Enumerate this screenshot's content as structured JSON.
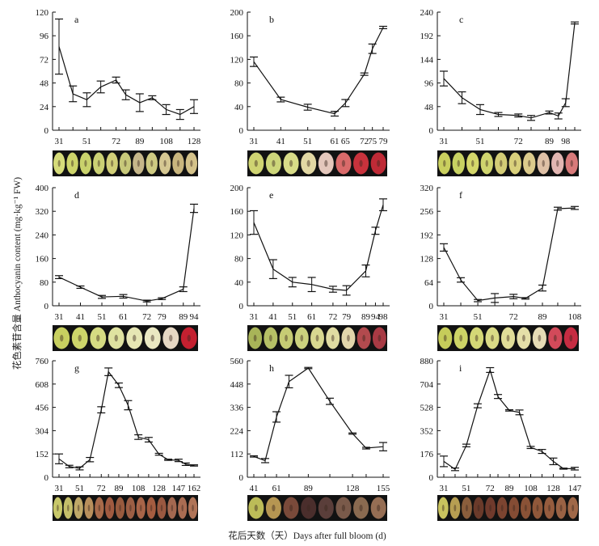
{
  "y_axis_label": "花色素苷含量 Anthocyanin content (mg·kg⁻¹ FW)",
  "x_axis_label": "花后天数（天）Days after full bloom (d)",
  "chart_data": [
    {
      "panel": "a",
      "type": "line",
      "yticks": [
        0,
        24,
        48,
        72,
        96,
        120
      ],
      "ylim": [
        0,
        120
      ],
      "xticks": [
        "31",
        "51",
        "72",
        "89",
        "108",
        "128"
      ],
      "points": [
        {
          "day": 31,
          "mean": 85,
          "err": 28
        },
        {
          "day": 41,
          "mean": 37,
          "err": 8
        },
        {
          "day": 51,
          "mean": 31,
          "err": 7
        },
        {
          "day": 61,
          "mean": 44,
          "err": 6
        },
        {
          "day": 72,
          "mean": 51,
          "err": 3
        },
        {
          "day": 79,
          "mean": 36,
          "err": 5
        },
        {
          "day": 89,
          "mean": 28,
          "err": 9
        },
        {
          "day": 98,
          "mean": 33,
          "err": 2
        },
        {
          "day": 108,
          "mean": 21,
          "err": 5
        },
        {
          "day": 118,
          "mean": 16,
          "err": 5
        },
        {
          "day": 128,
          "mean": 24,
          "err": 7
        }
      ],
      "fruit_colors": [
        "#d6dc7a",
        "#cdd46a",
        "#c9d26c",
        "#cbd174",
        "#d1cf78",
        "#c7c87a",
        "#c6b78a",
        "#ceca82",
        "#d5c792",
        "#c9b67e",
        "#d4c28a"
      ]
    },
    {
      "panel": "b",
      "type": "line",
      "yticks": [
        0,
        40,
        80,
        120,
        160,
        200
      ],
      "ylim": [
        0,
        200
      ],
      "xticks": [
        "31",
        "41",
        "51",
        "61",
        "65",
        "72",
        "75",
        "79"
      ],
      "points": [
        {
          "day": 31,
          "mean": 116,
          "err": 8
        },
        {
          "day": 41,
          "mean": 52,
          "err": 4
        },
        {
          "day": 51,
          "mean": 39,
          "err": 5
        },
        {
          "day": 61,
          "mean": 28,
          "err": 4
        },
        {
          "day": 65,
          "mean": 46,
          "err": 6
        },
        {
          "day": 72,
          "mean": 95,
          "err": 2
        },
        {
          "day": 75,
          "mean": 138,
          "err": 8
        },
        {
          "day": 79,
          "mean": 174,
          "err": 2
        }
      ],
      "fruit_colors": [
        "#cfd472",
        "#cdd67a",
        "#d8dc88",
        "#e2d8a4",
        "#e4c7bc",
        "#d96a6a",
        "#c8323c",
        "#bf2a36"
      ]
    },
    {
      "panel": "c",
      "type": "line",
      "yticks": [
        0,
        48,
        96,
        144,
        192,
        240
      ],
      "ylim": [
        0,
        240
      ],
      "xticks": [
        "31",
        "51",
        "72",
        "89",
        "98"
      ],
      "points": [
        {
          "day": 31,
          "mean": 105,
          "err": 15
        },
        {
          "day": 41,
          "mean": 66,
          "err": 12
        },
        {
          "day": 51,
          "mean": 42,
          "err": 10
        },
        {
          "day": 61,
          "mean": 32,
          "err": 4
        },
        {
          "day": 72,
          "mean": 30,
          "err": 3
        },
        {
          "day": 79,
          "mean": 25,
          "err": 5
        },
        {
          "day": 89,
          "mean": 36,
          "err": 3
        },
        {
          "day": 94,
          "mean": 29,
          "err": 6
        },
        {
          "day": 98,
          "mean": 56,
          "err": 8
        },
        {
          "day": 103,
          "mean": 218,
          "err": 2
        }
      ],
      "fruit_colors": [
        "#c9cf5e",
        "#c8d262",
        "#d4d76a",
        "#cfd46e",
        "#d3cc76",
        "#d9d07c",
        "#dccb8c",
        "#dec0a6",
        "#e2b6b2",
        "#d87a7a"
      ]
    },
    {
      "panel": "d",
      "type": "line",
      "yticks": [
        0,
        80,
        160,
        240,
        320,
        400
      ],
      "ylim": [
        0,
        400
      ],
      "xticks": [
        "31",
        "41",
        "51",
        "61",
        "72",
        "79",
        "89",
        "94"
      ],
      "points": [
        {
          "day": 31,
          "mean": 97,
          "err": 5
        },
        {
          "day": 41,
          "mean": 63,
          "err": 4
        },
        {
          "day": 51,
          "mean": 30,
          "err": 5
        },
        {
          "day": 61,
          "mean": 32,
          "err": 6
        },
        {
          "day": 72,
          "mean": 16,
          "err": 3
        },
        {
          "day": 79,
          "mean": 24,
          "err": 3
        },
        {
          "day": 89,
          "mean": 56,
          "err": 8
        },
        {
          "day": 94,
          "mean": 330,
          "err": 14
        }
      ],
      "fruit_colors": [
        "#c8d060",
        "#cdd56a",
        "#d5db82",
        "#dfe2a0",
        "#e6e6b4",
        "#eae8c2",
        "#e6d8c4",
        "#c42030"
      ]
    },
    {
      "panel": "e",
      "type": "line",
      "yticks": [
        0,
        40,
        80,
        120,
        160,
        200
      ],
      "ylim": [
        0,
        200
      ],
      "xticks": [
        "31",
        "41",
        "51",
        "61",
        "72",
        "79",
        "89",
        "94",
        "98"
      ],
      "points": [
        {
          "day": 31,
          "mean": 141,
          "err": 20
        },
        {
          "day": 41,
          "mean": 62,
          "err": 16
        },
        {
          "day": 51,
          "mean": 40,
          "err": 8
        },
        {
          "day": 61,
          "mean": 36,
          "err": 12
        },
        {
          "day": 72,
          "mean": 28,
          "err": 5
        },
        {
          "day": 79,
          "mean": 26,
          "err": 8
        },
        {
          "day": 89,
          "mean": 59,
          "err": 10
        },
        {
          "day": 94,
          "mean": 127,
          "err": 6
        },
        {
          "day": 98,
          "mean": 171,
          "err": 10
        }
      ],
      "fruit_colors": [
        "#a8b458",
        "#b6c066",
        "#c6cc74",
        "#ccd27e",
        "#d8d890",
        "#e0dca2",
        "#e2d6ac",
        "#b24a4e",
        "#a83a44"
      ]
    },
    {
      "panel": "f",
      "type": "line",
      "yticks": [
        0,
        64,
        128,
        192,
        256,
        320
      ],
      "ylim": [
        0,
        320
      ],
      "xticks": [
        "31",
        "51",
        "72",
        "89",
        "108"
      ],
      "points": [
        {
          "day": 31,
          "mean": 158,
          "err": 10
        },
        {
          "day": 41,
          "mean": 70,
          "err": 6
        },
        {
          "day": 51,
          "mean": 14,
          "err": 3
        },
        {
          "day": 61,
          "mean": 21,
          "err": 12
        },
        {
          "day": 72,
          "mean": 25,
          "err": 6
        },
        {
          "day": 79,
          "mean": 20,
          "err": 2
        },
        {
          "day": 89,
          "mean": 48,
          "err": 8
        },
        {
          "day": 98,
          "mean": 263,
          "err": 4
        },
        {
          "day": 108,
          "mean": 265,
          "err": 4
        }
      ],
      "fruit_colors": [
        "#c6cc5a",
        "#cdd466",
        "#d4d876",
        "#dadb86",
        "#e0dd98",
        "#e4dfa8",
        "#e6dcb6",
        "#d24a5a",
        "#c62c42"
      ]
    },
    {
      "panel": "g",
      "type": "line",
      "yticks": [
        0,
        152,
        304,
        456,
        608,
        760
      ],
      "ylim": [
        0,
        760
      ],
      "xticks": [
        "31",
        "51",
        "72",
        "89",
        "108",
        "128",
        "147",
        "162"
      ],
      "points": [
        {
          "day": 31,
          "mean": 120,
          "err": 32
        },
        {
          "day": 41,
          "mean": 70,
          "err": 8
        },
        {
          "day": 51,
          "mean": 58,
          "err": 10
        },
        {
          "day": 61,
          "mean": 115,
          "err": 14
        },
        {
          "day": 72,
          "mean": 440,
          "err": 20
        },
        {
          "day": 79,
          "mean": 688,
          "err": 25
        },
        {
          "day": 89,
          "mean": 600,
          "err": 15
        },
        {
          "day": 98,
          "mean": 470,
          "err": 30
        },
        {
          "day": 108,
          "mean": 262,
          "err": 15
        },
        {
          "day": 118,
          "mean": 245,
          "err": 15
        },
        {
          "day": 128,
          "mean": 150,
          "err": 6
        },
        {
          "day": 137,
          "mean": 114,
          "err": 4
        },
        {
          "day": 147,
          "mean": 110,
          "err": 8
        },
        {
          "day": 154,
          "mean": 85,
          "err": 8
        },
        {
          "day": 162,
          "mean": 77,
          "err": 4
        }
      ],
      "fruit_colors": [
        "#c8c86a",
        "#c4be6a",
        "#bfa868",
        "#b88f5c",
        "#a86a4a",
        "#a05a40",
        "#985a3e",
        "#9c5e44",
        "#a86448",
        "#a45c40",
        "#9a5840",
        "#a46850",
        "#aa6c52",
        "#b07458"
      ]
    },
    {
      "panel": "h",
      "type": "line",
      "yticks": [
        0,
        112,
        224,
        336,
        448,
        560
      ],
      "ylim": [
        0,
        560
      ],
      "xticks": [
        "41",
        "61",
        "89",
        "128",
        "155"
      ],
      "points": [
        {
          "day": 41,
          "mean": 100,
          "err": 3
        },
        {
          "day": 51,
          "mean": 80,
          "err": 10
        },
        {
          "day": 61,
          "mean": 290,
          "err": 25
        },
        {
          "day": 72,
          "mean": 460,
          "err": 30
        },
        {
          "day": 89,
          "mean": 525,
          "err": 3
        },
        {
          "day": 108,
          "mean": 365,
          "err": 15
        },
        {
          "day": 128,
          "mean": 210,
          "err": 3
        },
        {
          "day": 140,
          "mean": 140,
          "err": 4
        },
        {
          "day": 155,
          "mean": 147,
          "err": 20
        }
      ],
      "fruit_colors": [
        "#bcbc58",
        "#b69652",
        "#7a4a3a",
        "#4a2e2c",
        "#5a3e3a",
        "#7a5a4a",
        "#8a6a50",
        "#966e54"
      ]
    },
    {
      "panel": "i",
      "type": "line",
      "yticks": [
        0,
        176,
        352,
        528,
        704,
        880
      ],
      "ylim": [
        0,
        880
      ],
      "xticks": [
        "31",
        "51",
        "72",
        "89",
        "108",
        "128",
        "147"
      ],
      "points": [
        {
          "day": 31,
          "mean": 120,
          "err": 40
        },
        {
          "day": 41,
          "mean": 60,
          "err": 10
        },
        {
          "day": 51,
          "mean": 240,
          "err": 10
        },
        {
          "day": 61,
          "mean": 540,
          "err": 15
        },
        {
          "day": 72,
          "mean": 810,
          "err": 18
        },
        {
          "day": 79,
          "mean": 610,
          "err": 15
        },
        {
          "day": 89,
          "mean": 505,
          "err": 5
        },
        {
          "day": 98,
          "mean": 490,
          "err": 18
        },
        {
          "day": 108,
          "mean": 225,
          "err": 8
        },
        {
          "day": 118,
          "mean": 195,
          "err": 15
        },
        {
          "day": 128,
          "mean": 120,
          "err": 25
        },
        {
          "day": 137,
          "mean": 65,
          "err": 4
        },
        {
          "day": 147,
          "mean": 65,
          "err": 10
        }
      ],
      "fruit_colors": [
        "#c8c25e",
        "#b69e52",
        "#8a5e3c",
        "#6a3a2a",
        "#703a2c",
        "#7c4430",
        "#844c34",
        "#8a5236",
        "#90583a",
        "#965c3e",
        "#9a6244",
        "#a06848"
      ]
    }
  ]
}
